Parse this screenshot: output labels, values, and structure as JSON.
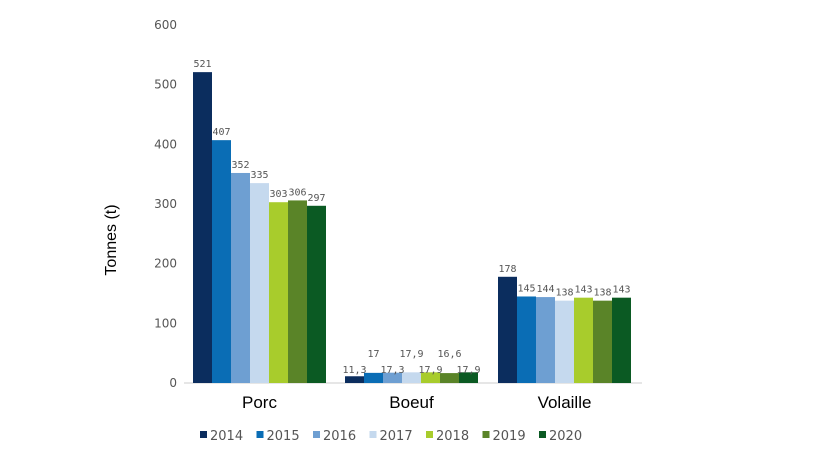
{
  "chart_data": {
    "type": "bar",
    "title": "",
    "xlabel": "",
    "ylabel": "Tonnes (t)",
    "ylim": [
      0,
      600
    ],
    "yticks": [
      0,
      100,
      200,
      300,
      400,
      500,
      600
    ],
    "grid": false,
    "legend": "bottom",
    "categories": [
      "Porc",
      "Boeuf",
      "Volaille"
    ],
    "series": [
      {
        "name": "2014",
        "color": "#0b2d5e",
        "values": [
          521,
          11.3,
          178
        ],
        "labels": [
          "521",
          "11,3",
          "178"
        ]
      },
      {
        "name": "2015",
        "color": "#0a6db5",
        "values": [
          407,
          17,
          145
        ],
        "labels": [
          "407",
          "17",
          "145"
        ]
      },
      {
        "name": "2016",
        "color": "#6e9fd2",
        "values": [
          352,
          17.3,
          144
        ],
        "labels": [
          "352",
          "17,3",
          "144"
        ]
      },
      {
        "name": "2017",
        "color": "#c5d9ee",
        "values": [
          335,
          17.9,
          138
        ],
        "labels": [
          "335",
          "17,9",
          "138"
        ]
      },
      {
        "name": "2018",
        "color": "#a8cc2c",
        "values": [
          303,
          17.9,
          143
        ],
        "labels": [
          "303",
          "17,9",
          "143"
        ]
      },
      {
        "name": "2019",
        "color": "#5a8428",
        "values": [
          306,
          16.6,
          138
        ],
        "labels": [
          "306",
          "16,6",
          "138"
        ]
      },
      {
        "name": "2020",
        "color": "#0b5a23",
        "values": [
          297,
          17.9,
          143
        ],
        "labels": [
          "297",
          "17,9",
          "143"
        ]
      }
    ]
  }
}
